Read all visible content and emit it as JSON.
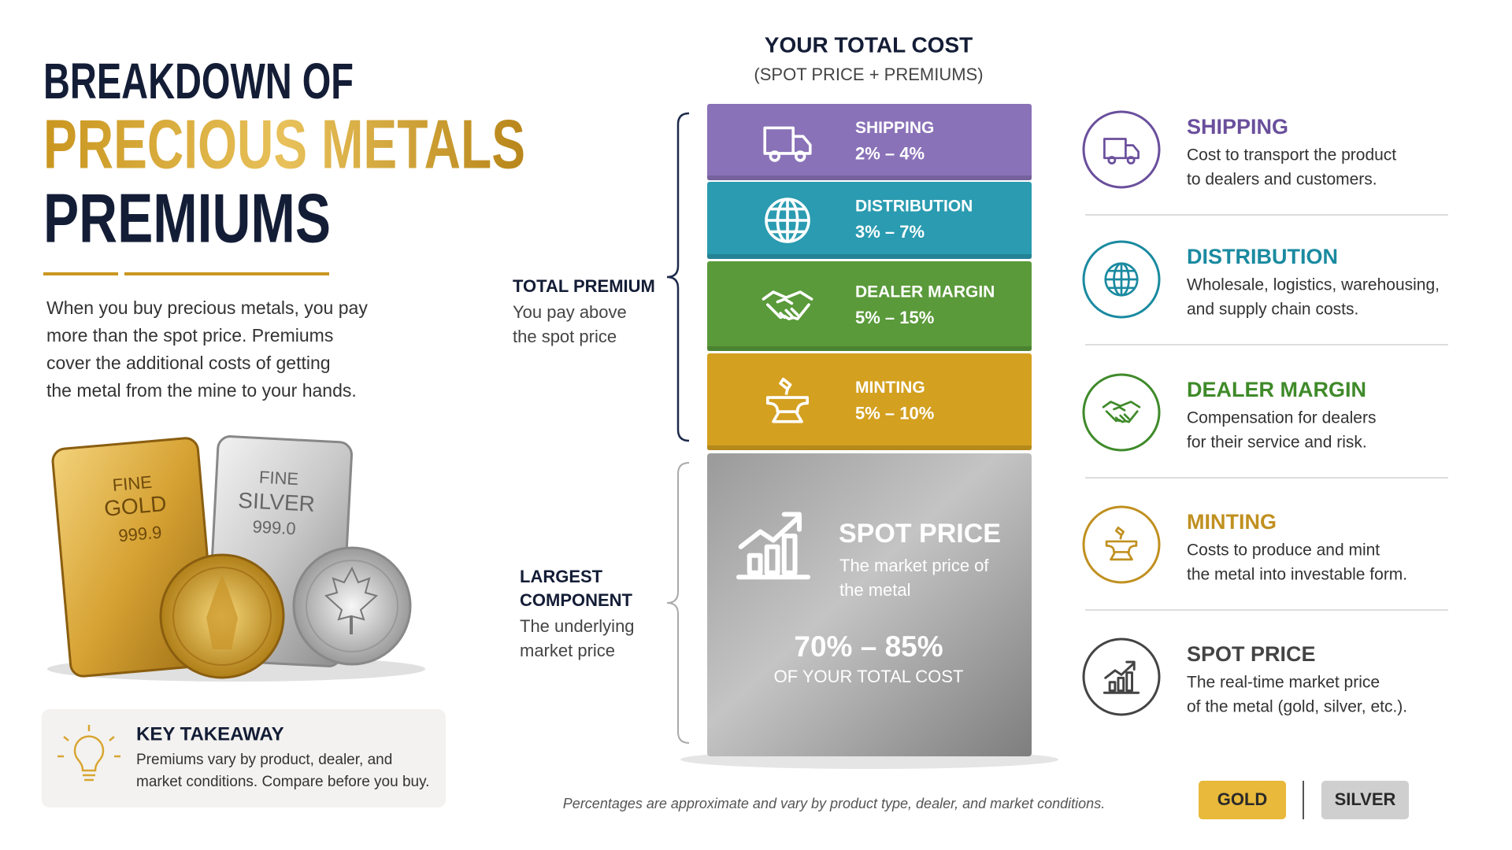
{
  "header": {
    "title_lines": [
      "BREAKDOWN OF",
      "PRECIOUS METALS",
      "PREMIUMS"
    ]
  },
  "intro_lines": [
    "When you buy precious metals, you pay",
    "more than the spot price. Premiums",
    "cover the additional costs of getting",
    "the metal from the mine to your hands."
  ],
  "bars": {
    "gold": [
      "FINE",
      "GOLD",
      "999.9"
    ],
    "silver": [
      "FINE",
      "SILVER",
      "999.0"
    ]
  },
  "key_takeaway": {
    "title": "KEY TAKEAWAY",
    "lines": [
      "Premiums vary by product, dealer, and",
      "market conditions. Compare before you buy."
    ]
  },
  "stack": {
    "title": "YOUR TOTAL COST",
    "subtitle": "(SPOT PRICE + PREMIUMS)",
    "segments": [
      {
        "label": "SHIPPING",
        "range": "2% – 4%"
      },
      {
        "label": "DISTRIBUTION",
        "range": "3% – 7%"
      },
      {
        "label": "DEALER MARGIN",
        "range": "5% – 15%"
      },
      {
        "label": "MINTING",
        "range": "5% – 10%"
      }
    ],
    "spot": {
      "label": "SPOT PRICE",
      "description": [
        "The market price of",
        "the metal"
      ],
      "range": "70% – 85%",
      "range_caption": "OF YOUR TOTAL COST"
    }
  },
  "brackets": [
    {
      "title": [
        "TOTAL PREMIUM"
      ],
      "lines": [
        "You pay above",
        "the spot price"
      ]
    },
    {
      "title": [
        "LARGEST",
        "COMPONENT"
      ],
      "lines": [
        "The underlying",
        "market price"
      ]
    }
  ],
  "legend": [
    {
      "title": "SHIPPING",
      "lines": [
        "Cost to transport the product",
        "to dealers and customers."
      ]
    },
    {
      "title": "DISTRIBUTION",
      "lines": [
        "Wholesale, logistics, warehousing,",
        "and supply chain costs."
      ]
    },
    {
      "title": "DEALER MARGIN",
      "lines": [
        "Compensation for dealers",
        "for their service and risk."
      ]
    },
    {
      "title": "MINTING",
      "lines": [
        "Costs to produce and mint",
        "the metal into investable form."
      ]
    },
    {
      "title": "SPOT PRICE",
      "lines": [
        "The real-time market price",
        "of the metal (gold, silver, etc.)."
      ]
    }
  ],
  "footnote": "Percentages are approximate and vary by product type, dealer, and market conditions.",
  "toggle": [
    "GOLD",
    "SILVER"
  ]
}
